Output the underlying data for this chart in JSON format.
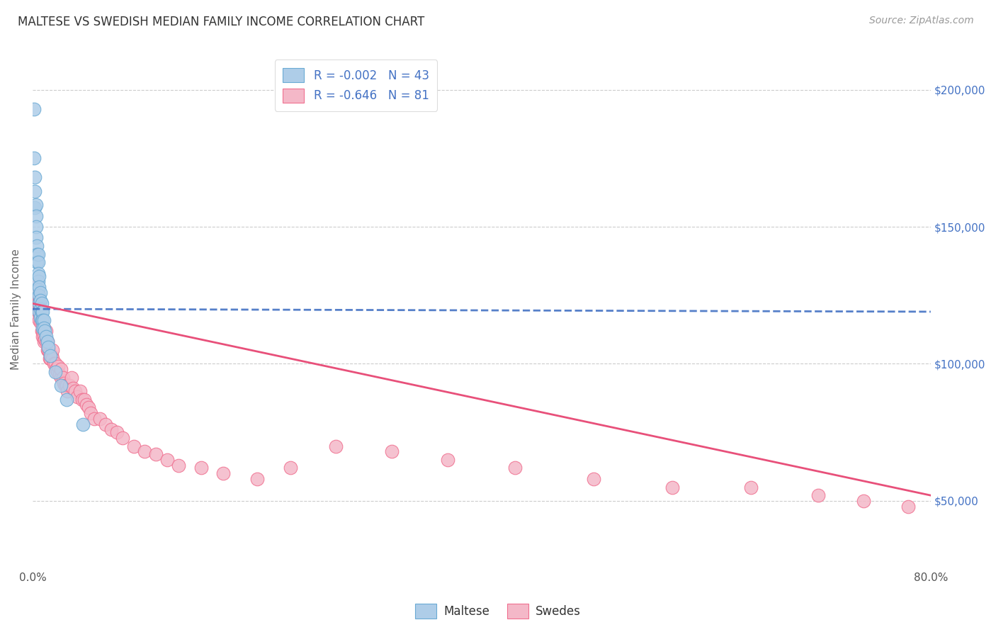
{
  "title": "MALTESE VS SWEDISH MEDIAN FAMILY INCOME CORRELATION CHART",
  "source": "Source: ZipAtlas.com",
  "ylabel": "Median Family Income",
  "yticks": [
    50000,
    100000,
    150000,
    200000
  ],
  "ytick_labels": [
    "$50,000",
    "$100,000",
    "$150,000",
    "$200,000"
  ],
  "xlim": [
    0.0,
    0.8
  ],
  "ylim": [
    25000,
    215000
  ],
  "legend1_label": "R = -0.002   N = 43",
  "legend2_label": "R = -0.646   N = 81",
  "maltese_color": "#aecde8",
  "swedes_color": "#f4b8c8",
  "maltese_edge_color": "#6aaad4",
  "swedes_edge_color": "#f07090",
  "trendline_maltese_color": "#4472c4",
  "trendline_swedes_color": "#e8507a",
  "background_color": "#ffffff",
  "grid_color": "#cccccc",
  "right_label_color": "#4472c4",
  "maltese_x": [
    0.001,
    0.001,
    0.002,
    0.002,
    0.002,
    0.003,
    0.003,
    0.003,
    0.003,
    0.004,
    0.004,
    0.004,
    0.005,
    0.005,
    0.005,
    0.005,
    0.005,
    0.006,
    0.006,
    0.006,
    0.006,
    0.006,
    0.007,
    0.007,
    0.007,
    0.007,
    0.008,
    0.008,
    0.008,
    0.009,
    0.009,
    0.009,
    0.01,
    0.01,
    0.011,
    0.012,
    0.013,
    0.014,
    0.016,
    0.02,
    0.025,
    0.03,
    0.045
  ],
  "maltese_y": [
    193000,
    175000,
    168000,
    163000,
    157000,
    158000,
    154000,
    150000,
    146000,
    143000,
    140000,
    137000,
    140000,
    137000,
    133000,
    130000,
    127000,
    132000,
    128000,
    125000,
    122000,
    119000,
    126000,
    123000,
    120000,
    117000,
    122000,
    119000,
    116000,
    119000,
    116000,
    113000,
    116000,
    113000,
    112000,
    110000,
    108000,
    106000,
    103000,
    97000,
    92000,
    87000,
    78000
  ],
  "swedes_x": [
    0.002,
    0.003,
    0.003,
    0.004,
    0.004,
    0.005,
    0.005,
    0.005,
    0.006,
    0.006,
    0.006,
    0.007,
    0.007,
    0.008,
    0.008,
    0.009,
    0.009,
    0.01,
    0.01,
    0.01,
    0.011,
    0.012,
    0.012,
    0.013,
    0.013,
    0.014,
    0.015,
    0.015,
    0.016,
    0.017,
    0.018,
    0.018,
    0.019,
    0.02,
    0.021,
    0.022,
    0.023,
    0.024,
    0.025,
    0.025,
    0.027,
    0.028,
    0.029,
    0.03,
    0.031,
    0.033,
    0.035,
    0.036,
    0.038,
    0.04,
    0.042,
    0.044,
    0.046,
    0.048,
    0.05,
    0.052,
    0.055,
    0.06,
    0.065,
    0.07,
    0.075,
    0.08,
    0.09,
    0.1,
    0.11,
    0.12,
    0.13,
    0.15,
    0.17,
    0.2,
    0.23,
    0.27,
    0.32,
    0.37,
    0.43,
    0.5,
    0.57,
    0.64,
    0.7,
    0.74,
    0.78
  ],
  "swedes_y": [
    128000,
    125000,
    122000,
    120000,
    118000,
    125000,
    122000,
    119000,
    122000,
    119000,
    116000,
    118000,
    115000,
    115000,
    112000,
    112000,
    110000,
    113000,
    110000,
    108000,
    109000,
    112000,
    108000,
    108000,
    105000,
    105000,
    104000,
    102000,
    102000,
    103000,
    105000,
    102000,
    100000,
    100000,
    98000,
    97000,
    99000,
    96000,
    95000,
    98000,
    95000,
    93000,
    92000,
    92000,
    90000,
    92000,
    95000,
    91000,
    90000,
    88000,
    90000,
    87000,
    87000,
    85000,
    84000,
    82000,
    80000,
    80000,
    78000,
    76000,
    75000,
    73000,
    70000,
    68000,
    67000,
    65000,
    63000,
    62000,
    60000,
    58000,
    62000,
    70000,
    68000,
    65000,
    62000,
    58000,
    55000,
    55000,
    52000,
    50000,
    48000
  ],
  "trendline_start_x": 0.0,
  "trendline_end_x": 0.8
}
